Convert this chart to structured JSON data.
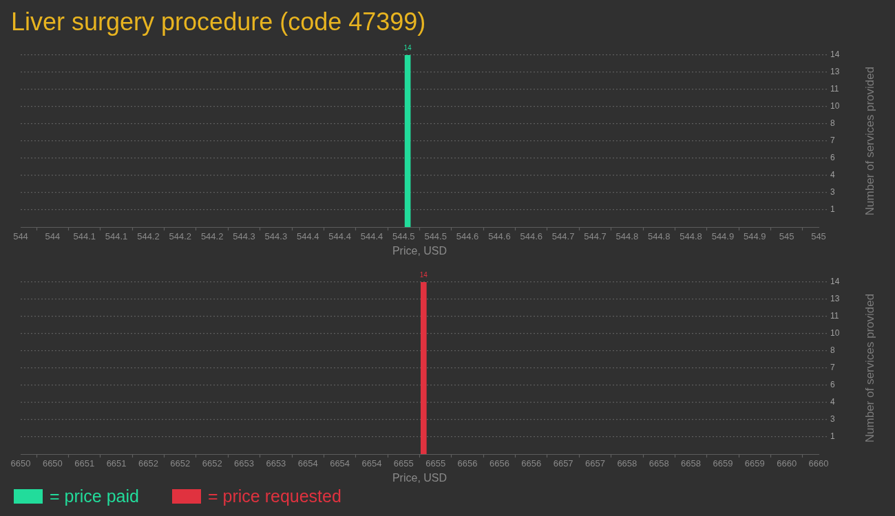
{
  "chart_data": [
    {
      "type": "bar",
      "title": "Liver surgery procedure (code 47399)",
      "xlabel": "Price, USD",
      "ylabel": "Number of services provided",
      "x": [
        544.485
      ],
      "series": [
        {
          "name": "= price paid",
          "color": "#22dc9b",
          "values": [
            14
          ]
        }
      ],
      "xlim": [
        544,
        545
      ],
      "xticks": [
        544,
        {
          "value": 544.04,
          "label": "544"
        },
        {
          "value": 544.08,
          "label": "544.1"
        },
        {
          "value": 544.12,
          "label": "544.1"
        },
        {
          "value": 544.16,
          "label": "544.2"
        },
        544.2,
        {
          "value": 544.24,
          "label": "544.2"
        },
        {
          "value": 544.28,
          "label": "544.3"
        },
        {
          "value": 544.32,
          "label": "544.3"
        },
        {
          "value": 544.36,
          "label": "544.4"
        },
        544.4,
        {
          "value": 544.44,
          "label": "544.4"
        },
        {
          "value": 544.48,
          "label": "544.5"
        },
        {
          "value": 544.52,
          "label": "544.5"
        },
        {
          "value": 544.56,
          "label": "544.6"
        },
        544.6,
        {
          "value": 544.64,
          "label": "544.6"
        },
        {
          "value": 544.68,
          "label": "544.7"
        },
        {
          "value": 544.72,
          "label": "544.7"
        },
        {
          "value": 544.76,
          "label": "544.8"
        },
        544.8,
        {
          "value": 544.84,
          "label": "544.8"
        },
        {
          "value": 544.88,
          "label": "544.9"
        },
        {
          "value": 544.92,
          "label": "544.9"
        },
        {
          "value": 544.96,
          "label": "545"
        },
        545
      ],
      "ylim": [
        0,
        14
      ],
      "yticks": [
        {
          "value": 1.4,
          "label": "1"
        },
        {
          "value": 2.8,
          "label": "3"
        },
        {
          "value": 4.2,
          "label": "4"
        },
        {
          "value": 5.6,
          "label": "6"
        },
        {
          "value": 7,
          "label": "7"
        },
        {
          "value": 8.4,
          "label": "8"
        },
        {
          "value": 9.8,
          "label": "10"
        },
        {
          "value": 11.2,
          "label": "11"
        },
        {
          "value": 12.6,
          "label": "13"
        },
        {
          "value": 14,
          "label": "14"
        }
      ],
      "grid": "y",
      "legend": "bottom left",
      "data_labels": true
    },
    {
      "type": "bar",
      "xlabel": "Price, USD",
      "ylabel": "Number of services provided",
      "x": [
        6655.05
      ],
      "series": [
        {
          "name": "= price requested",
          "color": "#e0323f",
          "values": [
            14
          ]
        }
      ],
      "xlim": [
        6650,
        6660
      ],
      "xticks": [
        6650,
        {
          "value": 6650.4,
          "label": "6650"
        },
        {
          "value": 6650.8,
          "label": "6651"
        },
        {
          "value": 6651.2,
          "label": "6651"
        },
        {
          "value": 6651.6,
          "label": "6652"
        },
        6652,
        {
          "value": 6652.4,
          "label": "6652"
        },
        {
          "value": 6652.8,
          "label": "6653"
        },
        {
          "value": 6653.2,
          "label": "6653"
        },
        {
          "value": 6653.6,
          "label": "6654"
        },
        6654,
        {
          "value": 6654.4,
          "label": "6654"
        },
        {
          "value": 6654.8,
          "label": "6655"
        },
        {
          "value": 6655.2,
          "label": "6655"
        },
        {
          "value": 6655.6,
          "label": "6656"
        },
        6656,
        {
          "value": 6656.4,
          "label": "6656"
        },
        {
          "value": 6656.8,
          "label": "6657"
        },
        {
          "value": 6657.2,
          "label": "6657"
        },
        {
          "value": 6657.6,
          "label": "6658"
        },
        6658,
        {
          "value": 6658.4,
          "label": "6658"
        },
        {
          "value": 6658.8,
          "label": "6659"
        },
        {
          "value": 6659.2,
          "label": "6659"
        },
        {
          "value": 6659.6,
          "label": "6660"
        },
        6660
      ],
      "ylim": [
        0,
        14
      ],
      "yticks": [
        {
          "value": 1.4,
          "label": "1"
        },
        {
          "value": 2.8,
          "label": "3"
        },
        {
          "value": 4.2,
          "label": "4"
        },
        {
          "value": 5.6,
          "label": "6"
        },
        {
          "value": 7,
          "label": "7"
        },
        {
          "value": 8.4,
          "label": "8"
        },
        {
          "value": 9.8,
          "label": "10"
        },
        {
          "value": 11.2,
          "label": "11"
        },
        {
          "value": 12.6,
          "label": "13"
        },
        {
          "value": 14,
          "label": "14"
        }
      ],
      "grid": "y",
      "legend": "bottom left",
      "data_labels": true
    }
  ]
}
